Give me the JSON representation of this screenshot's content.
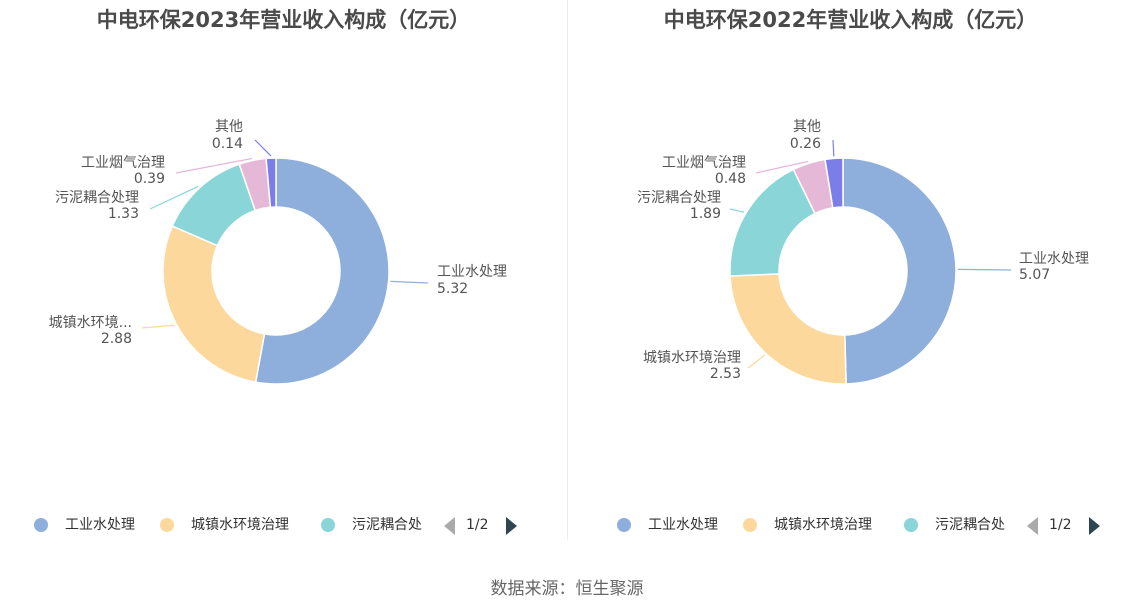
{
  "source": "数据来源：恒生聚源",
  "colors": [
    "#8eaedc",
    "#fdd89c",
    "#8ad5d8",
    "#e6b8d8",
    "#7b7ee8"
  ],
  "chart_data": [
    {
      "type": "pie",
      "title": "中电环保2023年营业收入构成（亿元）",
      "categories": [
        "工业水处理",
        "城镇水环境治理",
        "污泥耦合处理",
        "工业烟气治理",
        "其他"
      ],
      "label_text": [
        "工业水处理",
        "城镇水环境...",
        "污泥耦合处理",
        "工业烟气治理",
        "其他"
      ],
      "values": [
        5.32,
        2.88,
        1.33,
        0.39,
        0.14
      ],
      "value_labels": [
        "5.32",
        "2.88",
        "1.33",
        "0.39",
        "0.14"
      ],
      "legend": {
        "items": [
          "工业水处理",
          "城镇水环境治理",
          "污泥耦合处"
        ],
        "page": "1/2",
        "placement": "bottom"
      }
    },
    {
      "type": "pie",
      "title": "中电环保2022年营业收入构成（亿元）",
      "categories": [
        "工业水处理",
        "城镇水环境治理",
        "污泥耦合处理",
        "工业烟气治理",
        "其他"
      ],
      "label_text": [
        "工业水处理",
        "城镇水环境治理",
        "污泥耦合处理",
        "工业烟气治理",
        "其他"
      ],
      "values": [
        5.07,
        2.53,
        1.89,
        0.48,
        0.26
      ],
      "value_labels": [
        "5.07",
        "2.53",
        "1.89",
        "0.48",
        "0.26"
      ],
      "legend": {
        "items": [
          "工业水处理",
          "城镇水环境治理",
          "污泥耦合处"
        ],
        "page": "1/2",
        "placement": "bottom"
      }
    }
  ]
}
